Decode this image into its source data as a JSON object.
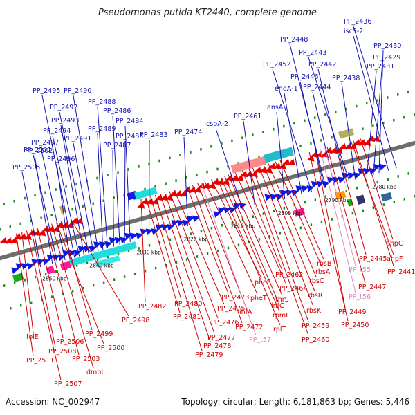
{
  "title": "Pseudomonas putida KT2440, complete genome",
  "footer": {
    "accession": "Accession: NC_002947",
    "summary": "Topology: circular; Length: 6,181,863 bp; Genes: 5,446"
  },
  "colors": {
    "forward_label": "#1010b0",
    "reverse_label": "#cc0000",
    "trna_label": "#e088c0",
    "forward_gene": "#0a1ae6",
    "reverse_gene": "#ee0000",
    "backbone": "#6e6e6e",
    "tick": "#1a8a1a"
  },
  "ticks": [
    {
      "pos": 2780,
      "label": "2780 kbp"
    },
    {
      "pos": 2790,
      "label": "2790 kbp"
    },
    {
      "pos": 2800,
      "label": "2800 kbp"
    },
    {
      "pos": 2810,
      "label": "2810 kbp"
    },
    {
      "pos": 2820,
      "label": "2820 kbp"
    },
    {
      "pos": 2830,
      "label": "2830 kbp"
    },
    {
      "pos": 2840,
      "label": "2840 kbp"
    },
    {
      "pos": 2850,
      "label": "2850 kbp"
    }
  ],
  "forward_genes": [
    {
      "label": "PP_2436",
      "pos": 2776.5
    },
    {
      "label": "iscS-2",
      "pos": 2778.2
    },
    {
      "label": "PP_2430",
      "pos": 2780.2
    },
    {
      "label": "PP_2429",
      "pos": 2781.4
    },
    {
      "label": "PP_2431",
      "pos": 2782.8
    },
    {
      "label": "PP_2448",
      "pos": 2791.5
    },
    {
      "label": "PP_2443",
      "pos": 2786.5
    },
    {
      "label": "PP_2442",
      "pos": 2787.5
    },
    {
      "label": "PP_2452",
      "pos": 2794.5
    },
    {
      "label": "PP_2446",
      "pos": 2791.8
    },
    {
      "label": "PP_2438",
      "pos": 2785.2
    },
    {
      "label": "PP_2444",
      "pos": 2789.7
    },
    {
      "label": "endA-1",
      "pos": 2796.6
    },
    {
      "label": "ansA",
      "pos": 2800.2
    },
    {
      "label": "PP_2461",
      "pos": 2806.5
    },
    {
      "label": "cspA-2",
      "pos": 2809.0
    },
    {
      "label": "PP_2474",
      "pos": 2820.8
    },
    {
      "label": "PP_2483",
      "pos": 2829.0
    },
    {
      "label": "PP_2484",
      "pos": 2833.0
    },
    {
      "label": "PP_2485",
      "pos": 2834.2
    },
    {
      "label": "PP_2486",
      "pos": 2835.2
    },
    {
      "label": "PP_2487",
      "pos": 2836.5
    },
    {
      "label": "PP_2488",
      "pos": 2837.8
    },
    {
      "label": "PP_2489",
      "pos": 2838.8
    },
    {
      "label": "PP_2490",
      "pos": 2839.8
    },
    {
      "label": "PP_2491",
      "pos": 2840.8
    },
    {
      "label": "PP_2492",
      "pos": 2841.8
    },
    {
      "label": "PP_2493",
      "pos": 2842.8
    },
    {
      "label": "PP_2494",
      "pos": 2843.8
    },
    {
      "label": "PP_2495",
      "pos": 2844.8
    },
    {
      "label": "PP_2496",
      "pos": 2845.8
    },
    {
      "label": "PP_2497",
      "pos": 2846.8
    },
    {
      "label": "PP_2501",
      "pos": 2848.5
    },
    {
      "label": "PP_2502",
      "pos": 2849.5
    },
    {
      "label": "PP_2505",
      "pos": 2852.0
    }
  ],
  "reverse_genes": [
    {
      "label": "ahpC",
      "pos": 2782.0
    },
    {
      "label": "ahpF",
      "pos": 2784.0
    },
    {
      "label": "PP_2445",
      "pos": 2787.0
    },
    {
      "label": "PP_2441",
      "pos": 2783.5
    },
    {
      "label": "PP_2447",
      "pos": 2789.0
    },
    {
      "label": "PP_2449",
      "pos": 2791.5
    },
    {
      "label": "PP_2450",
      "pos": 2792.8
    },
    {
      "label": "rbsB",
      "pos": 2799.0
    },
    {
      "label": "rbsA",
      "pos": 2800.0
    },
    {
      "label": "rbsC",
      "pos": 2801.5
    },
    {
      "label": "rbsR",
      "pos": 2802.5
    },
    {
      "label": "rbsK",
      "pos": 2803.5
    },
    {
      "label": "PP_2459",
      "pos": 2804.8
    },
    {
      "label": "PP_2460",
      "pos": 2805.6
    },
    {
      "label": "PP_2462",
      "pos": 2807.0
    },
    {
      "label": "PP_2464",
      "pos": 2808.5
    },
    {
      "label": "thrS",
      "pos": 2810.0
    },
    {
      "label": "infC",
      "pos": 2810.8
    },
    {
      "label": "rpmI",
      "pos": 2811.6
    },
    {
      "label": "rplT",
      "pos": 2812.4
    },
    {
      "label": "pheS",
      "pos": 2813.6
    },
    {
      "label": "pheT",
      "pos": 2815.0
    },
    {
      "label": "ihfA",
      "pos": 2816.5
    },
    {
      "label": "PP_2472",
      "pos": 2817.6
    },
    {
      "label": "PP_2473",
      "pos": 2818.8
    },
    {
      "label": "PP_2475",
      "pos": 2821.5
    },
    {
      "label": "PP_2476",
      "pos": 2822.5
    },
    {
      "label": "PP_2477",
      "pos": 2823.5
    },
    {
      "label": "PP_2478",
      "pos": 2824.5
    },
    {
      "label": "PP_2479",
      "pos": 2825.5
    },
    {
      "label": "PP_2480",
      "pos": 2826.5
    },
    {
      "label": "PP_2481",
      "pos": 2827.5
    },
    {
      "label": "PP_2482",
      "pos": 2828.5
    },
    {
      "label": "PP_2498",
      "pos": 2843.5
    },
    {
      "label": "PP_2499",
      "pos": 2845.5
    },
    {
      "label": "PP_2500",
      "pos": 2846.5
    },
    {
      "label": "dmpI",
      "pos": 2847.5
    },
    {
      "label": "PP_2503",
      "pos": 2848.7
    },
    {
      "label": "PP_2506",
      "pos": 2850.5
    },
    {
      "label": "PP_2508",
      "pos": 2851.8
    },
    {
      "label": "PP_2507",
      "pos": 2852.8
    },
    {
      "label": "folE",
      "pos": 2853.8
    },
    {
      "label": "PP_2511",
      "pos": 2855.0
    }
  ],
  "trna_genes": [
    {
      "label": "PP_t55",
      "pos": 2789.5
    },
    {
      "label": "PP_t56",
      "pos": 2790.5
    },
    {
      "label": "PP_t57",
      "pos": 2815.8
    }
  ]
}
